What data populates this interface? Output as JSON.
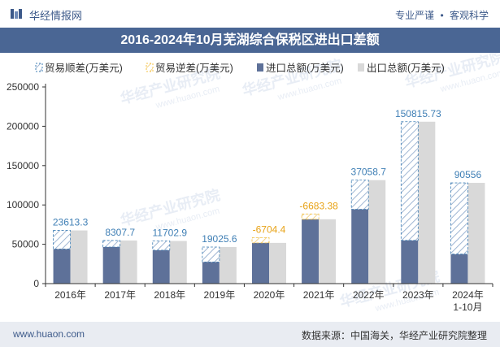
{
  "header": {
    "brand": "华经情报网",
    "tag1": "专业严谨",
    "tag2": "客观科学",
    "separator": "•"
  },
  "title": "2016-2024年10月芜湖综合保税区进出口差额",
  "footer": {
    "website": "www.huaon.com",
    "source": "数据来源：中国海关，华经产业研究院整理"
  },
  "watermark": "华经产业研究院",
  "watermark_url": "www.huaon.com",
  "colors": {
    "export": "#d9d9d9",
    "import": "#5e7199",
    "surplus": "#3f7fb5",
    "deficit": "#f5c242",
    "title_bg": "#4a6694",
    "label": "#3d5a8a"
  },
  "chart_data": {
    "type": "bar",
    "categories": [
      "2016年",
      "2017年",
      "2018年",
      "2019年",
      "2020年",
      "2021年",
      "2022年",
      "2023年",
      "2024年\n1-10月"
    ],
    "series": [
      {
        "name": "贸易顺差(万美元)",
        "values": [
          23613.3,
          8307.7,
          11702.9,
          19025.6,
          null,
          null,
          37058.7,
          150815.73,
          90556
        ]
      },
      {
        "name": "贸易逆差(万美元)",
        "values": [
          null,
          null,
          null,
          null,
          -6704.4,
          -6683.38,
          null,
          null,
          null
        ]
      },
      {
        "name": "进口总额(万美元)",
        "values": [
          44000,
          46500,
          42500,
          27500,
          58500,
          88500,
          94500,
          55000,
          37500
        ]
      },
      {
        "name": "出口总额(万美元)",
        "values": [
          67613.3,
          54807.7,
          54202.9,
          46525.6,
          51795.6,
          81816.62,
          131558.7,
          205815.73,
          128056
        ]
      }
    ],
    "data_labels": [
      "23613.3",
      "8307.7",
      "11702.9",
      "19025.6",
      "-6704.4",
      "-6683.38",
      "37058.7",
      "150815.73",
      "90556"
    ],
    "ylim": [
      0,
      250000
    ],
    "yticks": [
      0,
      50000,
      100000,
      150000,
      200000,
      250000
    ],
    "legend_position": "top-left",
    "grid": false
  }
}
